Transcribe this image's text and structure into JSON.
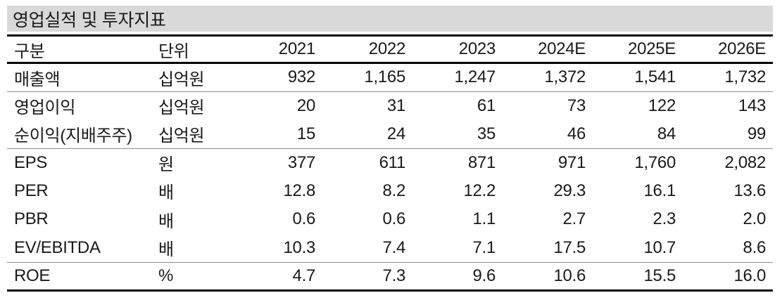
{
  "table": {
    "title": "영업실적 및 투자지표",
    "columns": [
      "구분",
      "단위",
      "2021",
      "2022",
      "2023",
      "2024E",
      "2025E",
      "2026E"
    ],
    "rows": [
      {
        "label": "매출액",
        "unit": "십억원",
        "values": [
          "932",
          "1,165",
          "1,247",
          "1,372",
          "1,541",
          "1,732"
        ],
        "section_end": true
      },
      {
        "label": "영업이익",
        "unit": "십억원",
        "values": [
          "20",
          "31",
          "61",
          "73",
          "122",
          "143"
        ],
        "section_end": false
      },
      {
        "label": "순이익(지배주주)",
        "unit": "십억원",
        "values": [
          "15",
          "24",
          "35",
          "46",
          "84",
          "99"
        ],
        "section_end": true
      },
      {
        "label": "EPS",
        "unit": "원",
        "values": [
          "377",
          "611",
          "871",
          "971",
          "1,760",
          "2,082"
        ],
        "section_end": false
      },
      {
        "label": "PER",
        "unit": "배",
        "values": [
          "12.8",
          "8.2",
          "12.2",
          "29.3",
          "16.1",
          "13.6"
        ],
        "section_end": false
      },
      {
        "label": "PBR",
        "unit": "배",
        "values": [
          "0.6",
          "0.6",
          "1.1",
          "2.7",
          "2.3",
          "2.0"
        ],
        "section_end": false
      },
      {
        "label": "EV/EBITDA",
        "unit": "배",
        "values": [
          "10.3",
          "7.4",
          "7.1",
          "17.5",
          "10.7",
          "8.6"
        ],
        "section_end": true
      },
      {
        "label": "ROE",
        "unit": "%",
        "values": [
          "4.7",
          "7.3",
          "9.6",
          "10.6",
          "15.5",
          "16.0"
        ],
        "section_end": false
      }
    ],
    "colors": {
      "title_bg": "#d9d9d9",
      "heavy_rule": "#000000",
      "light_rule": "#8c8c8c",
      "text": "#1a1a1a"
    }
  }
}
